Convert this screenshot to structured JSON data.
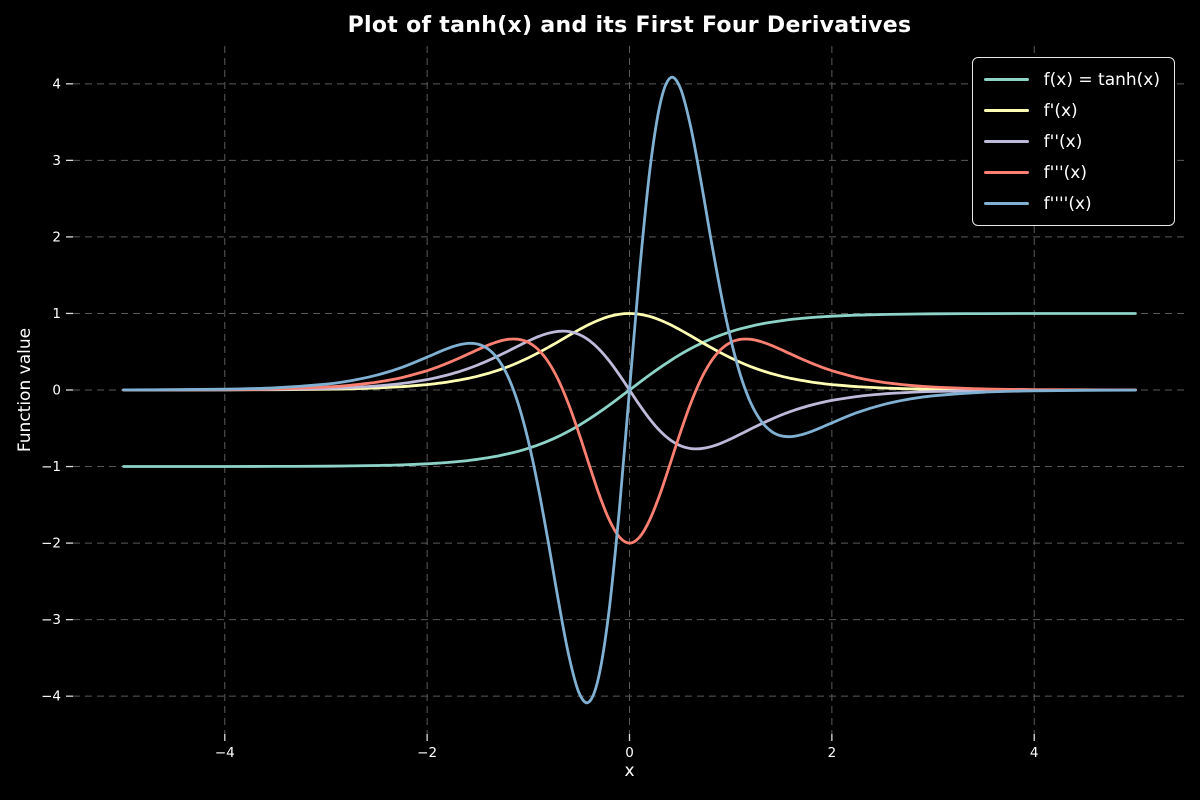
{
  "colors": {
    "background": "#000000",
    "text": "#ffffff",
    "grid": "#5a5a5a",
    "tick": "#dddddd",
    "legend_border": "#e8e8e8"
  },
  "chart_data": {
    "type": "line",
    "title": "Plot of tanh(x) and its First Four Derivatives",
    "xlabel": "x",
    "ylabel": "Function value",
    "xlim": [
      -5.5,
      5.5
    ],
    "ylim": [
      -4.494,
      4.494
    ],
    "x_ticks": [
      -4,
      -2,
      0,
      2,
      4
    ],
    "y_ticks": [
      -4,
      -3,
      -2,
      -1,
      0,
      1,
      2,
      3,
      4
    ],
    "grid": {
      "on": true,
      "style": "dashed"
    },
    "legend_position": "upper right",
    "line_width": 2.8,
    "x": [
      -5,
      -4.5,
      -4,
      -3.5,
      -3,
      -2.75,
      -2.5,
      -2.25,
      -2,
      -1.9,
      -1.8,
      -1.7,
      -1.6,
      -1.5,
      -1.4,
      -1.3,
      -1.2,
      -1.1,
      -1,
      -0.9,
      -0.8,
      -0.7,
      -0.6,
      -0.5,
      -0.4,
      -0.3,
      -0.2,
      -0.1,
      0,
      0.1,
      0.2,
      0.3,
      0.4,
      0.5,
      0.6,
      0.7,
      0.8,
      0.9,
      1,
      1.1,
      1.2,
      1.3,
      1.4,
      1.5,
      1.6,
      1.7,
      1.8,
      1.9,
      2,
      2.25,
      2.5,
      2.75,
      3,
      3.5,
      4,
      4.5,
      5
    ],
    "series": [
      {
        "name": "f(x) = tanh(x)",
        "color": "#8dd3c7",
        "values": [
          -0.9999,
          -0.9998,
          -0.9993,
          -0.9982,
          -0.9951,
          -0.9919,
          -0.9866,
          -0.978,
          -0.964,
          -0.9562,
          -0.9468,
          -0.9354,
          -0.9217,
          -0.9051,
          -0.8854,
          -0.8617,
          -0.8337,
          -0.8005,
          -0.7616,
          -0.7163,
          -0.664,
          -0.6044,
          -0.537,
          -0.4621,
          -0.3799,
          -0.2913,
          -0.1974,
          -0.0997,
          0,
          0.0997,
          0.1974,
          0.2913,
          0.3799,
          0.4621,
          0.537,
          0.6044,
          0.664,
          0.7163,
          0.7616,
          0.8005,
          0.8337,
          0.8617,
          0.8854,
          0.9051,
          0.9217,
          0.9354,
          0.9468,
          0.9562,
          0.964,
          0.978,
          0.9866,
          0.9919,
          0.9951,
          0.9982,
          0.9993,
          0.9998,
          0.9999
        ]
      },
      {
        "name": "f'(x)",
        "color": "#ffffb3",
        "values": [
          0.0002,
          0.0005,
          0.0013,
          0.0036,
          0.0099,
          0.0162,
          0.0266,
          0.0435,
          0.0706,
          0.0856,
          0.1036,
          0.125,
          0.1505,
          0.1807,
          0.2162,
          0.2574,
          0.305,
          0.3592,
          0.42,
          0.4869,
          0.5591,
          0.6347,
          0.7116,
          0.7864,
          0.8556,
          0.9151,
          0.961,
          0.9901,
          1,
          0.9901,
          0.961,
          0.9151,
          0.8556,
          0.7864,
          0.7116,
          0.6347,
          0.5591,
          0.4869,
          0.42,
          0.3592,
          0.305,
          0.2574,
          0.2162,
          0.1807,
          0.1505,
          0.125,
          0.1036,
          0.0856,
          0.0706,
          0.0435,
          0.0266,
          0.0162,
          0.0099,
          0.0036,
          0.0013,
          0.0005,
          0.0002
        ]
      },
      {
        "name": "f''(x)",
        "color": "#bebada",
        "values": [
          0.0004,
          0.001,
          0.0027,
          0.0073,
          0.0197,
          0.0322,
          0.0525,
          0.085,
          0.1362,
          0.1637,
          0.1961,
          0.2339,
          0.2775,
          0.3271,
          0.3827,
          0.4437,
          0.5086,
          0.5751,
          0.6397,
          0.6975,
          0.7424,
          0.7672,
          0.7643,
          0.7269,
          0.6502,
          0.5332,
          0.3794,
          0.1974,
          0,
          -0.1974,
          -0.3794,
          -0.5332,
          -0.6502,
          -0.7269,
          -0.7643,
          -0.7672,
          -0.7424,
          -0.6975,
          -0.6397,
          -0.5751,
          -0.5086,
          -0.4437,
          -0.3827,
          -0.3271,
          -0.2775,
          -0.2339,
          -0.1961,
          -0.1637,
          -0.1362,
          -0.085,
          -0.0525,
          -0.0322,
          -0.0197,
          -0.0073,
          -0.0027,
          -0.001,
          -0.0004
        ]
      },
      {
        "name": "f'''(x)",
        "color": "#fb8072",
        "values": [
          0.0007,
          0.002,
          0.0053,
          0.0145,
          0.0389,
          0.0633,
          0.1022,
          0.1625,
          0.2526,
          0.2984,
          0.3499,
          0.4063,
          0.4661,
          0.5269,
          0.5843,
          0.6321,
          0.6619,
          0.6627,
          0.6216,
          0.5252,
          0.361,
          0.1216,
          -0.1917,
          -0.5652,
          -0.9701,
          -1.3643,
          -1.6974,
          -1.9211,
          -2,
          -1.9211,
          -1.6974,
          -1.3643,
          -0.9701,
          -0.5652,
          -0.1917,
          0.1216,
          0.361,
          0.5252,
          0.6216,
          0.6627,
          0.6619,
          0.6321,
          0.5843,
          0.5269,
          0.4661,
          0.4063,
          0.3499,
          0.2984,
          0.2526,
          0.1625,
          0.1022,
          0.0633,
          0.0389,
          0.0145,
          0.0053,
          0.002,
          0.0007
        ]
      },
      {
        "name": "f''''(x)",
        "color": "#80b1d3",
        "values": [
          0.0014,
          0.004,
          0.0107,
          0.0287,
          0.0763,
          0.1224,
          0.1932,
          0.2957,
          0.4294,
          0.4867,
          0.5407,
          0.5846,
          0.6087,
          0.5991,
          0.5382,
          0.4041,
          0.1727,
          -0.1785,
          -0.6652,
          -1.2856,
          -2.0111,
          -2.7751,
          -3.4691,
          -3.9522,
          -4.0752,
          -3.7225,
          -2.8578,
          -1.5554,
          0,
          1.5554,
          2.8578,
          3.7225,
          4.0752,
          3.9522,
          3.4691,
          2.7751,
          2.0111,
          1.2856,
          0.6652,
          0.1785,
          -0.1727,
          -0.4041,
          -0.5382,
          -0.5991,
          -0.6087,
          -0.5846,
          -0.5407,
          -0.4867,
          -0.4294,
          -0.2957,
          -0.1932,
          -0.1224,
          -0.0763,
          -0.0287,
          -0.0107,
          -0.004,
          -0.0014
        ]
      }
    ]
  }
}
